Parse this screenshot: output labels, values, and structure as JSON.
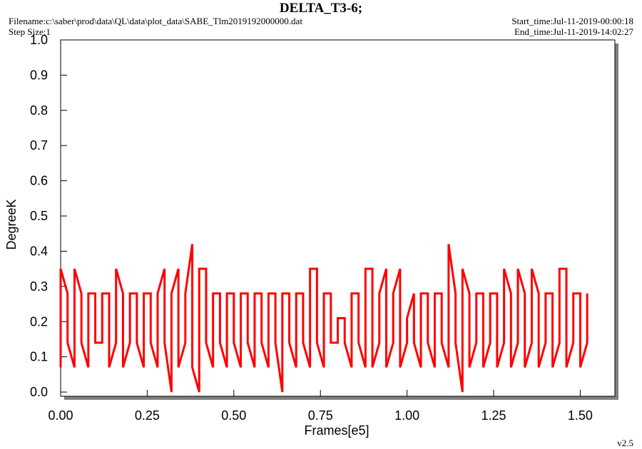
{
  "chart_data": {
    "type": "line",
    "title": "DELTA_T3-6;",
    "filename": "Filename:c:\\saber\\prod\\data\\QL\\data\\plot_data\\SABE_Tlm2019192000000.dat",
    "step_size": "Step Size:1",
    "start_time": "Start_time:Jul-11-2019-00:00:18",
    "end_time": "End_time:Jul-11-2019-14:02:27",
    "version": "v2.5",
    "x_label": "Frames[e5]",
    "y_label": "DegreeK",
    "color": "#ff0000",
    "xlim": [
      0,
      1.6
    ],
    "ylim": [
      -0.012,
      1.0
    ],
    "xticks": [
      {
        "value": 0,
        "label": "0.00"
      },
      0.25,
      {
        "value": 0.5,
        "label": "0.50"
      },
      0.75,
      {
        "value": 1,
        "label": "1.00"
      },
      1.25,
      {
        "value": 1.5,
        "label": "1.50"
      }
    ],
    "yticks": [
      {
        "value": 0,
        "label": "0.0"
      },
      0.1,
      0.2,
      0.3,
      0.4,
      0.5,
      0.6,
      0.7,
      0.8,
      0.9,
      {
        "value": 1,
        "label": "1.0"
      }
    ],
    "x": [
      0,
      0,
      0.02,
      0.02,
      0.04,
      0.04,
      0.06,
      0.06,
      0.08,
      0.08,
      0.1,
      0.1,
      0.12,
      0.12,
      0.14,
      0.14,
      0.16,
      0.16,
      0.18,
      0.18,
      0.2,
      0.2,
      0.22,
      0.22,
      0.24,
      0.24,
      0.26,
      0.26,
      0.28,
      0.28,
      0.3,
      0.3,
      0.32,
      0.32,
      0.34,
      0.34,
      0.36,
      0.36,
      0.38,
      0.38,
      0.4,
      0.4,
      0.42,
      0.42,
      0.44,
      0.44,
      0.46,
      0.46,
      0.48,
      0.48,
      0.5,
      0.5,
      0.52,
      0.52,
      0.54,
      0.54,
      0.56,
      0.56,
      0.58,
      0.58,
      0.6,
      0.6,
      0.62,
      0.62,
      0.64,
      0.64,
      0.66,
      0.66,
      0.68,
      0.68,
      0.7,
      0.7,
      0.72,
      0.72,
      0.74,
      0.74,
      0.76,
      0.76,
      0.78,
      0.78,
      0.8,
      0.8,
      0.82,
      0.82,
      0.84,
      0.84,
      0.86,
      0.86,
      0.88,
      0.88,
      0.9,
      0.9,
      0.92,
      0.92,
      0.94,
      0.94,
      0.96,
      0.96,
      0.98,
      0.98,
      1,
      1,
      1.02,
      1.02,
      1.04,
      1.04,
      1.06,
      1.06,
      1.08,
      1.08,
      1.1,
      1.1,
      1.12,
      1.12,
      1.14,
      1.14,
      1.16,
      1.16,
      1.18,
      1.18,
      1.2,
      1.2,
      1.22,
      1.22,
      1.24,
      1.24,
      1.26,
      1.26,
      1.28,
      1.28,
      1.3,
      1.3,
      1.32,
      1.32,
      1.34,
      1.34,
      1.36,
      1.36,
      1.38,
      1.38,
      1.4,
      1.4,
      1.42,
      1.42,
      1.44,
      1.44,
      1.46,
      1.46,
      1.48,
      1.48,
      1.5,
      1.5,
      1.52,
      1.52
    ],
    "values": [
      0.07,
      0.35,
      0.28,
      0.14,
      0.07,
      0.35,
      0.28,
      0.14,
      0.07,
      0.28,
      0.28,
      0.14,
      0.14,
      0.28,
      0.28,
      0.07,
      0.14,
      0.35,
      0.28,
      0.07,
      0.14,
      0.28,
      0.28,
      0.14,
      0.07,
      0.28,
      0.28,
      0.14,
      0.07,
      0.28,
      0.35,
      0.14,
      0.0,
      0.28,
      0.35,
      0.07,
      0.14,
      0.28,
      0.42,
      0.07,
      0.0,
      0.35,
      0.35,
      0.14,
      0.07,
      0.28,
      0.28,
      0.14,
      0.07,
      0.28,
      0.28,
      0.14,
      0.07,
      0.28,
      0.28,
      0.14,
      0.07,
      0.28,
      0.28,
      0.14,
      0.07,
      0.28,
      0.28,
      0.14,
      0.0,
      0.28,
      0.28,
      0.14,
      0.07,
      0.28,
      0.28,
      0.14,
      0.07,
      0.35,
      0.35,
      0.14,
      0.07,
      0.28,
      0.28,
      0.14,
      0.14,
      0.21,
      0.21,
      0.14,
      0.07,
      0.28,
      0.28,
      0.14,
      0.07,
      0.35,
      0.35,
      0.07,
      0.14,
      0.28,
      0.35,
      0.07,
      0.14,
      0.28,
      0.35,
      0.07,
      0.14,
      0.21,
      0.28,
      0.14,
      0.07,
      0.28,
      0.28,
      0.14,
      0.07,
      0.28,
      0.28,
      0.14,
      0.07,
      0.42,
      0.28,
      0.14,
      0.0,
      0.35,
      0.28,
      0.07,
      0.14,
      0.28,
      0.28,
      0.07,
      0.14,
      0.28,
      0.28,
      0.07,
      0.14,
      0.35,
      0.28,
      0.07,
      0.14,
      0.35,
      0.28,
      0.07,
      0.14,
      0.35,
      0.28,
      0.07,
      0.14,
      0.28,
      0.28,
      0.07,
      0.14,
      0.35,
      0.35,
      0.07,
      0.14,
      0.28,
      0.28,
      0.07,
      0.14,
      0.28
    ]
  }
}
